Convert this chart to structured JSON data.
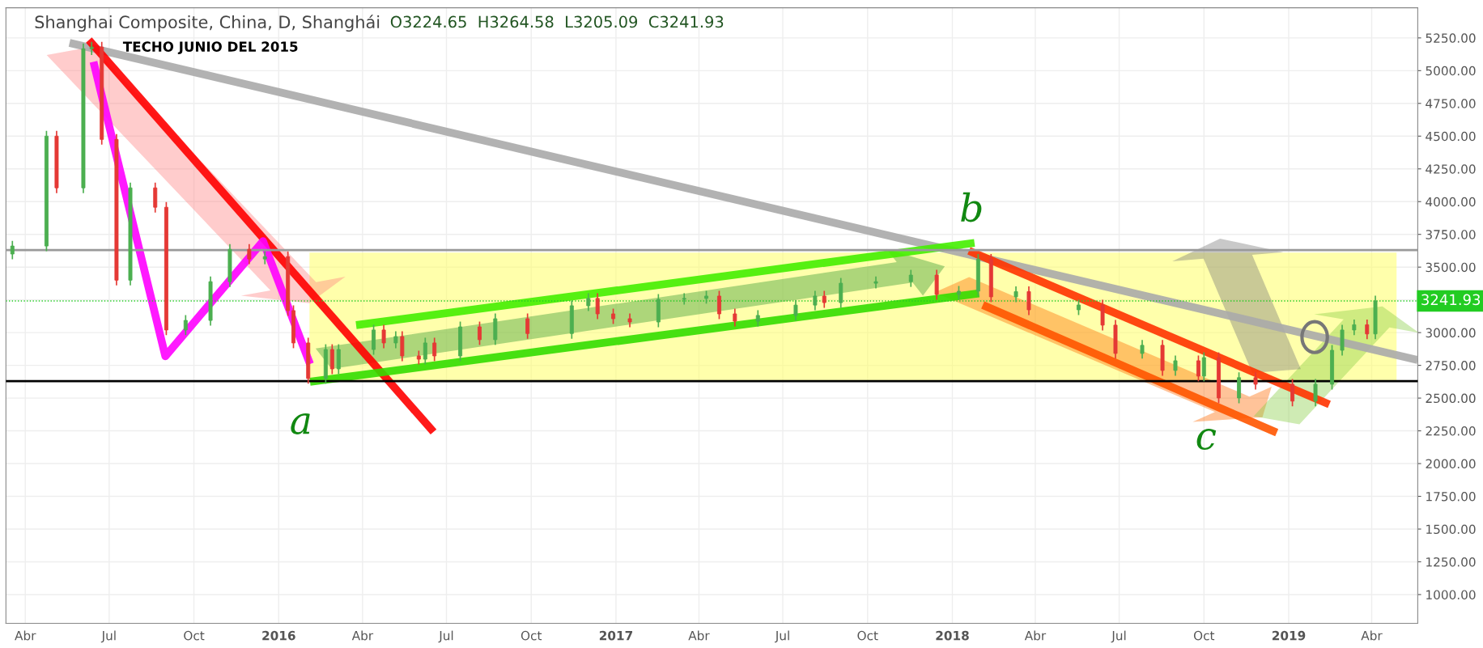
{
  "chart_data": {
    "type": "candlestick",
    "title": "Shanghai Composite, China, D, Shanghái",
    "subtitle": "O3224.65  H3264.58  L3205.09  C3241.93",
    "x": [
      "2015-03-18",
      "2015-04-24",
      "2015-05-05",
      "2015-06-03",
      "2015-06-12",
      "2015-06-23",
      "2015-07-09",
      "2015-07-24",
      "2015-08-20",
      "2015-09-01",
      "2015-09-22",
      "2015-10-19",
      "2015-11-09",
      "2015-11-30",
      "2015-12-17",
      "2016-01-11",
      "2016-01-17",
      "2016-02-02",
      "2016-02-21",
      "2016-02-28",
      "2016-03-06",
      "2016-04-13",
      "2016-04-24",
      "2016-05-07",
      "2016-05-14",
      "2016-06-01",
      "2016-06-08",
      "2016-06-18",
      "2016-07-16",
      "2016-08-06",
      "2016-08-23",
      "2016-09-27",
      "2016-11-14",
      "2016-12-02",
      "2016-12-12",
      "2016-12-29",
      "2017-01-16",
      "2017-02-16",
      "2017-03-16",
      "2017-04-09",
      "2017-04-23",
      "2017-05-10",
      "2017-06-04",
      "2017-07-15",
      "2017-08-05",
      "2017-08-15",
      "2017-09-02",
      "2017-10-10",
      "2017-11-17",
      "2017-12-15",
      "2018-01-08",
      "2018-01-29",
      "2018-02-12",
      "2018-03-11",
      "2018-03-25",
      "2018-05-18",
      "2018-06-13",
      "2018-06-27",
      "2018-07-26",
      "2018-08-17",
      "2018-08-31",
      "2018-09-25",
      "2018-10-01",
      "2018-10-17",
      "2018-11-08",
      "2018-11-26",
      "2019-01-05",
      "2019-01-30",
      "2019-02-17",
      "2019-02-28",
      "2019-03-13",
      "2019-03-27",
      "2019-04-05"
    ],
    "ohlc": [
      [
        3600,
        3700,
        3560,
        3661
      ],
      [
        3661,
        4540,
        3621,
        4500
      ],
      [
        4500,
        4540,
        4065,
        4105
      ],
      [
        4105,
        5207,
        4065,
        5167
      ],
      [
        5167,
        5220,
        5120,
        5180
      ],
      [
        5180,
        5220,
        4435,
        4475
      ],
      [
        4475,
        4515,
        3360,
        3400
      ],
      [
        3400,
        4145,
        3360,
        4105
      ],
      [
        4105,
        4145,
        3917,
        3957
      ],
      [
        3957,
        3997,
        2980,
        3020
      ],
      [
        3020,
        3133,
        2980,
        3093
      ],
      [
        3093,
        3429,
        3053,
        3389
      ],
      [
        3389,
        3676,
        3349,
        3636
      ],
      [
        3636,
        3676,
        3522,
        3562
      ],
      [
        3562,
        3620,
        3522,
        3580
      ],
      [
        3580,
        3620,
        3128,
        3168
      ],
      [
        3168,
        3208,
        2881,
        2921
      ],
      [
        2921,
        2961,
        2610,
        2650
      ],
      [
        2650,
        2911,
        2610,
        2871
      ],
      [
        2871,
        2911,
        2683,
        2723
      ],
      [
        2723,
        2911,
        2683,
        2871
      ],
      [
        2871,
        3060,
        2831,
        3020
      ],
      [
        3020,
        3060,
        2881,
        2921
      ],
      [
        2921,
        3010,
        2881,
        2970
      ],
      [
        2970,
        3010,
        2782,
        2822
      ],
      [
        2822,
        2862,
        2757,
        2797
      ],
      [
        2797,
        2961,
        2757,
        2921
      ],
      [
        2921,
        2961,
        2782,
        2822
      ],
      [
        2822,
        3084,
        2782,
        3044
      ],
      [
        3044,
        3084,
        2906,
        2946
      ],
      [
        2946,
        3146,
        2906,
        3106
      ],
      [
        3106,
        3146,
        2953,
        2993
      ],
      [
        2993,
        3245,
        2953,
        3205
      ],
      [
        3205,
        3301,
        3165,
        3261
      ],
      [
        3261,
        3301,
        3103,
        3143
      ],
      [
        3143,
        3183,
        3066,
        3106
      ],
      [
        3106,
        3146,
        3041,
        3081
      ],
      [
        3081,
        3294,
        3041,
        3254
      ],
      [
        3254,
        3301,
        3214,
        3261
      ],
      [
        3261,
        3319,
        3221,
        3279
      ],
      [
        3279,
        3319,
        3103,
        3143
      ],
      [
        3143,
        3183,
        3047,
        3087
      ],
      [
        3087,
        3171,
        3047,
        3131
      ],
      [
        3131,
        3250,
        3091,
        3210
      ],
      [
        3210,
        3319,
        3170,
        3279
      ],
      [
        3279,
        3319,
        3189,
        3229
      ],
      [
        3229,
        3417,
        3189,
        3377
      ],
      [
        3377,
        3429,
        3337,
        3389
      ],
      [
        3389,
        3479,
        3349,
        3439
      ],
      [
        3439,
        3479,
        3251,
        3291
      ],
      [
        3291,
        3356,
        3251,
        3316
      ],
      [
        3316,
        3600,
        3276,
        3560
      ],
      [
        3560,
        3600,
        3233,
        3273
      ],
      [
        3273,
        3353,
        3233,
        3313
      ],
      [
        3313,
        3353,
        3134,
        3174
      ],
      [
        3174,
        3251,
        3134,
        3211
      ],
      [
        3211,
        3251,
        3017,
        3057
      ],
      [
        3057,
        3097,
        2801,
        2841
      ],
      [
        2841,
        2943,
        2801,
        2903
      ],
      [
        2903,
        2943,
        2671,
        2711
      ],
      [
        2711,
        2825,
        2671,
        2785
      ],
      [
        2785,
        2825,
        2628,
        2668
      ],
      [
        2668,
        2849,
        2628,
        2809
      ],
      [
        2809,
        2849,
        2461,
        2501
      ],
      [
        2501,
        2696,
        2461,
        2656
      ],
      [
        2656,
        2696,
        2566,
        2606
      ],
      [
        2606,
        2646,
        2437,
        2477
      ],
      [
        2477,
        2646,
        2437,
        2606
      ],
      [
        2606,
        2905,
        2566,
        2865
      ],
      [
        2865,
        3060,
        2825,
        3020
      ],
      [
        3020,
        3100,
        2980,
        3060
      ],
      [
        3060,
        3100,
        2950,
        2990
      ],
      [
        2990,
        3282,
        2950,
        3242
      ]
    ],
    "colors": [
      "#4caf50",
      "#4caf50",
      "#e53935",
      "#4caf50",
      "#4caf50",
      "#e53935",
      "#e53935",
      "#4caf50",
      "#e53935",
      "#e53935",
      "#4caf50",
      "#4caf50",
      "#4caf50",
      "#e53935",
      "#4caf50",
      "#e53935",
      "#e53935",
      "#e53935",
      "#4caf50",
      "#e53935",
      "#4caf50",
      "#4caf50",
      "#e53935",
      "#4caf50",
      "#e53935",
      "#e53935",
      "#4caf50",
      "#e53935",
      "#4caf50",
      "#e53935",
      "#4caf50",
      "#e53935",
      "#4caf50",
      "#4caf50",
      "#e53935",
      "#e53935",
      "#e53935",
      "#4caf50",
      "#4caf50",
      "#4caf50",
      "#e53935",
      "#e53935",
      "#4caf50",
      "#4caf50",
      "#4caf50",
      "#e53935",
      "#4caf50",
      "#4caf50",
      "#4caf50",
      "#e53935",
      "#4caf50",
      "#4caf50",
      "#e53935",
      "#4caf50",
      "#e53935",
      "#4caf50",
      "#e53935",
      "#e53935",
      "#4caf50",
      "#e53935",
      "#4caf50",
      "#e53935",
      "#4caf50",
      "#e53935",
      "#4caf50",
      "#e53935",
      "#e53935",
      "#4caf50",
      "#4caf50",
      "#4caf50",
      "#4caf50",
      "#e53935",
      "#4caf50"
    ],
    "series": [
      {
        "type": "line",
        "color": "#aaaaaa",
        "x": [
          "2015-05-19",
          "2019-05-21"
        ],
        "values": [
          5212,
          2790
        ]
      },
      {
        "type": "line",
        "color": "#ff0000",
        "x": [
          "2015-06-09",
          "2016-06-17"
        ],
        "values": [
          5234,
          2242
        ]
      },
      {
        "type": "line",
        "color": "#ff00ff",
        "x": [
          "2015-06-14",
          "2015-08-31",
          "2015-12-15",
          "2016-02-04"
        ],
        "values": [
          5068,
          2820,
          3698,
          2760
        ]
      },
      {
        "type": "line",
        "color": "#44ee00",
        "x": [
          "2016-03-25",
          "2018-01-25"
        ],
        "values": [
          3057,
          3685
        ]
      },
      {
        "type": "line",
        "color": "#33dd00",
        "x": [
          "2016-02-04",
          "2018-01-30"
        ],
        "values": [
          2625,
          3300
        ]
      },
      {
        "type": "line",
        "color": "#ff3300",
        "x": [
          "2018-01-19",
          "2019-02-14"
        ],
        "values": [
          3625,
          2452
        ]
      },
      {
        "type": "line",
        "color": "#ff5500",
        "x": [
          "2018-02-03",
          "2018-12-19"
        ],
        "values": [
          3211,
          2236
        ]
      }
    ],
    "ref_lines": [
      {
        "axis": "y",
        "value": 2630,
        "color": "#000000",
        "line_style": "solid"
      },
      {
        "axis": "y",
        "value": 3630,
        "color": "#999999",
        "line_style": "solid"
      },
      {
        "axis": "y",
        "value": 3241.93,
        "label": "3241.93",
        "color": "#22cc22",
        "line_style": "dotted"
      }
    ],
    "bands": [
      {
        "axis": "y",
        "from": 2630,
        "to": 3610,
        "color": "#ffff66"
      }
    ],
    "annotations": [
      "TECHO JUNIO DEL 2015",
      "a",
      "b",
      "c"
    ],
    "xlim": [
      "2015-03-11",
      "2019-05-21"
    ],
    "xticks": [
      {
        "value": "2015-04-01",
        "label": "Abr"
      },
      {
        "value": "2015-07-01",
        "label": "Jul"
      },
      {
        "value": "2015-10-01",
        "label": "Oct"
      },
      {
        "value": "2016-01-01",
        "label": "2016"
      },
      {
        "value": "2016-04-01",
        "label": "Abr"
      },
      {
        "value": "2016-07-01",
        "label": "Jul"
      },
      {
        "value": "2016-10-01",
        "label": "Oct"
      },
      {
        "value": "2017-01-01",
        "label": "2017"
      },
      {
        "value": "2017-04-01",
        "label": "Abr"
      },
      {
        "value": "2017-07-01",
        "label": "Jul"
      },
      {
        "value": "2017-10-01",
        "label": "Oct"
      },
      {
        "value": "2018-01-01",
        "label": "2018"
      },
      {
        "value": "2018-04-01",
        "label": "Abr"
      },
      {
        "value": "2018-07-01",
        "label": "Jul"
      },
      {
        "value": "2018-10-01",
        "label": "Oct"
      },
      {
        "value": "2019-01-01",
        "label": "2019"
      },
      {
        "value": "2019-04-01",
        "label": "Abr"
      }
    ],
    "ylim": [
      780,
      5480
    ],
    "yticks": [
      {
        "value": 1000,
        "label": "1000.00"
      },
      {
        "value": 1250,
        "label": "1250.00"
      },
      {
        "value": 1500,
        "label": "1500.00"
      },
      {
        "value": 1750,
        "label": "1750.00"
      },
      {
        "value": 2000,
        "label": "2000.00"
      },
      {
        "value": 2250,
        "label": "2250.00"
      },
      {
        "value": 2500,
        "label": "2500.00"
      },
      {
        "value": 2750,
        "label": "2750.00"
      },
      {
        "value": 3000,
        "label": "3000.00"
      },
      {
        "value": 3250,
        "label": null
      },
      {
        "value": 3500,
        "label": "3500.00"
      },
      {
        "value": 3750,
        "label": "3750.00"
      },
      {
        "value": 4000,
        "label": "4000.00"
      },
      {
        "value": 4250,
        "label": "4250.00"
      },
      {
        "value": 4500,
        "label": "4500.00"
      },
      {
        "value": 4750,
        "label": "4750.00"
      },
      {
        "value": 5000,
        "label": "5000.00"
      },
      {
        "value": 5250,
        "label": "5250.00"
      }
    ],
    "grid": true
  }
}
